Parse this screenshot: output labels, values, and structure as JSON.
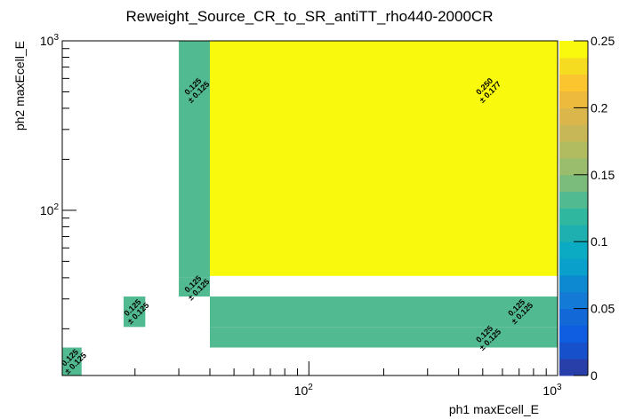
{
  "chart_data": {
    "type": "heatmap",
    "title": "Reweight_Source_CR_to_SR_antiTT_rho440-2000CR",
    "xlabel": "ph1 maxEcell_E",
    "ylabel": "ph2 maxEcell_E",
    "xscale": "log",
    "yscale": "log",
    "xlim": [
      10.2,
      1000
    ],
    "ylim": [
      10.6,
      1000
    ],
    "x_tick_labels": [
      {
        "value": 100,
        "base": "10",
        "exp": "2"
      },
      {
        "value": 1000,
        "base": "10",
        "exp": "3"
      }
    ],
    "y_tick_labels": [
      {
        "value": 100,
        "base": "10",
        "exp": "2"
      },
      {
        "value": 1000,
        "base": "10",
        "exp": "3"
      }
    ],
    "zlim": [
      0,
      0.25
    ],
    "z_ticks": [
      "0",
      "0.05",
      "0.1",
      "0.15",
      "0.2",
      "0.25"
    ],
    "palette": [
      "#283ea8",
      "#1750cb",
      "#0f5de0",
      "#1368d8",
      "#137bd6",
      "#0c89d0",
      "#09a0cb",
      "#0aabc3",
      "#1eb0b1",
      "#2fb89f",
      "#52ba91",
      "#7bbc7d",
      "#99bd6c",
      "#b1bc60",
      "#c8b756",
      "#dbb74b",
      "#edba3d",
      "#fbc530",
      "#f6dc20",
      "#f9f90e"
    ],
    "cells": [
      {
        "x": [
          10.2,
          12.2
        ],
        "y": [
          10.6,
          15.5
        ],
        "value": 0.125,
        "label": "0.125",
        "error": "± 0.125"
      },
      {
        "x": [
          18,
          22
        ],
        "y": [
          20.5,
          31
        ],
        "value": 0.125,
        "label": "0.125",
        "error": "± 0.125"
      },
      {
        "x": [
          30,
          40
        ],
        "y": [
          31,
          40
        ],
        "value": 0.125,
        "label": "0.125",
        "error": "± 0.125"
      },
      {
        "x": [
          30,
          40
        ],
        "y": [
          40,
          1000
        ],
        "value": 0.125,
        "label": "0.125",
        "error": "± 0.125"
      },
      {
        "x": [
          40,
          1000
        ],
        "y": [
          15.5,
          20.5
        ],
        "value": 0.125,
        "label": "0.125",
        "error": "± 0.125"
      },
      {
        "x": [
          40,
          1000
        ],
        "y": [
          20.5,
          31
        ],
        "value": 0.125,
        "label": "0.125",
        "error": "± 0.125"
      },
      {
        "x": [
          40,
          1000
        ],
        "y": [
          41,
          1000
        ],
        "value": 0.25,
        "label": "0.250",
        "error": "± 0.177"
      }
    ]
  }
}
